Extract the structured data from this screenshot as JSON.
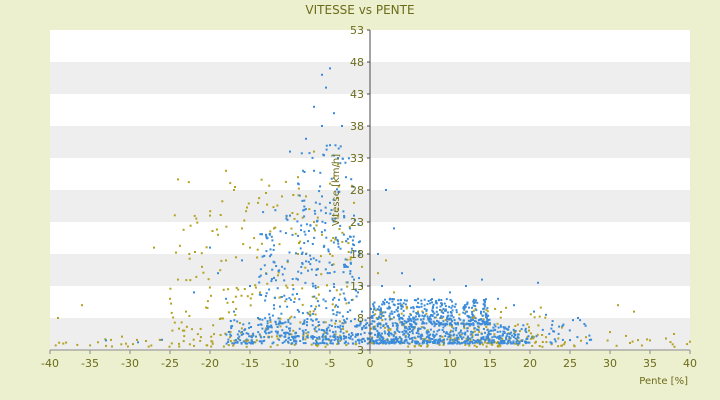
{
  "chart_data": {
    "type": "scatter",
    "title": "VITESSE vs PENTE",
    "xlabel": "Pente [%]",
    "ylabel": "Vitesse [km/h]",
    "xlim": [
      -40,
      40
    ],
    "ylim": [
      3,
      53
    ],
    "xticks": [
      -40,
      -35,
      -30,
      -25,
      -20,
      -15,
      -10,
      -5,
      0,
      5,
      10,
      15,
      20,
      25,
      30,
      35,
      40
    ],
    "yticks": [
      3,
      8,
      13,
      18,
      23,
      28,
      33,
      38,
      43,
      48,
      53
    ],
    "grid": "alternating horizontal bands",
    "legend": "none",
    "colors": {
      "background": "#edf0cf",
      "plot": "#ffffff",
      "band": "#eeeeee",
      "text": "#6b6b1a",
      "series_a": "#3a8bd9",
      "series_b": "#b3a323",
      "axis": "#4a4a4a"
    },
    "series": [
      {
        "color": "#3a8bd9",
        "points": [
          [
            -33,
            4.5
          ],
          [
            -29,
            4.2
          ],
          [
            -26,
            4.6
          ],
          [
            -22,
            12
          ],
          [
            -20,
            19
          ],
          [
            -19,
            15
          ],
          [
            -18,
            11
          ],
          [
            -17,
            9
          ],
          [
            -16,
            17
          ],
          [
            -15,
            13
          ],
          [
            -14,
            8
          ],
          [
            -13,
            21
          ],
          [
            -12,
            10
          ],
          [
            -11,
            16
          ],
          [
            -10,
            34
          ],
          [
            -10,
            24
          ],
          [
            -9,
            29
          ],
          [
            -9,
            14
          ],
          [
            -8,
            36
          ],
          [
            -8,
            18
          ],
          [
            -7,
            41
          ],
          [
            -7,
            31
          ],
          [
            -7,
            22
          ],
          [
            -6,
            46
          ],
          [
            -6,
            38
          ],
          [
            -6,
            27
          ],
          [
            -5.5,
            44
          ],
          [
            -5,
            47
          ],
          [
            -5,
            35
          ],
          [
            -5,
            26
          ],
          [
            -4.5,
            40
          ],
          [
            -4,
            33
          ],
          [
            -4,
            20
          ],
          [
            -3.5,
            38
          ],
          [
            -3,
            30
          ],
          [
            -3,
            16
          ],
          [
            -2.5,
            22
          ],
          [
            -2,
            24
          ],
          [
            -2,
            14
          ],
          [
            -1.5,
            12
          ],
          [
            -1,
            13
          ],
          [
            -1,
            9
          ],
          [
            -0.5,
            7
          ],
          [
            1,
            18
          ],
          [
            1.5,
            13
          ],
          [
            2,
            28
          ],
          [
            3,
            22
          ],
          [
            2.5,
            11
          ],
          [
            4,
            15
          ],
          [
            5,
            13
          ],
          [
            6,
            11
          ],
          [
            8,
            14
          ],
          [
            9,
            10
          ],
          [
            10,
            12
          ],
          [
            12,
            13
          ],
          [
            14,
            14
          ],
          [
            16,
            11
          ],
          [
            18,
            10
          ],
          [
            20.5,
            9
          ],
          [
            22,
            8.5
          ],
          [
            26,
            8
          ],
          [
            21,
            13.5
          ]
        ],
        "bands": [
          {
            "x": [
              -18,
              0
            ],
            "y": [
              4,
              8
            ],
            "n": 250
          },
          {
            "x": [
              -14,
              -1
            ],
            "y": [
              5,
              25
            ],
            "n": 260
          },
          {
            "x": [
              -9,
              -2
            ],
            "y": [
              15,
              35
            ],
            "n": 80
          },
          {
            "x": [
              0,
              15
            ],
            "y": [
              7,
              11
            ],
            "n": 380
          },
          {
            "x": [
              0,
              18
            ],
            "y": [
              4,
              7
            ],
            "n": 280
          },
          {
            "x": [
              0,
              20
            ],
            "y": [
              4,
              6
            ],
            "n": 200
          },
          {
            "x": [
              15,
              28
            ],
            "y": [
              4,
              8
            ],
            "n": 50
          }
        ]
      },
      {
        "color": "#b3a323",
        "points": [
          [
            -39,
            8
          ],
          [
            -36,
            10
          ],
          [
            -34,
            4.2
          ],
          [
            -31,
            5.1
          ],
          [
            -28,
            4.4
          ],
          [
            -27,
            19
          ],
          [
            -25,
            11
          ],
          [
            -24,
            14
          ],
          [
            -23,
            9
          ],
          [
            -21,
            16
          ],
          [
            -20,
            24
          ],
          [
            -19,
            21
          ],
          [
            -18,
            31
          ],
          [
            -18,
            17
          ],
          [
            -17,
            28
          ],
          [
            -16,
            22
          ],
          [
            -15,
            19
          ],
          [
            -14,
            26
          ],
          [
            -13,
            15
          ],
          [
            -12,
            22
          ],
          [
            -11,
            27
          ],
          [
            -10,
            24
          ],
          [
            -9,
            30
          ],
          [
            -9,
            18
          ],
          [
            -8,
            27
          ],
          [
            -7,
            23
          ],
          [
            -7,
            34
          ],
          [
            -6,
            21
          ],
          [
            -5,
            29
          ],
          [
            -5,
            18
          ],
          [
            -4,
            25
          ],
          [
            -4,
            32
          ],
          [
            -3,
            20
          ],
          [
            -2,
            14
          ],
          [
            -2,
            26
          ],
          [
            -1,
            16
          ],
          [
            1,
            15
          ],
          [
            2,
            17
          ],
          [
            3,
            12
          ],
          [
            4,
            10
          ],
          [
            6,
            9
          ],
          [
            9,
            8
          ],
          [
            12,
            9
          ],
          [
            15,
            7
          ],
          [
            18,
            6
          ],
          [
            22,
            5
          ],
          [
            24,
            6.5
          ],
          [
            27,
            5
          ],
          [
            30,
            5.8
          ],
          [
            31,
            10
          ],
          [
            32,
            5.2
          ],
          [
            33,
            9
          ],
          [
            35,
            4.5
          ],
          [
            37,
            4.8
          ],
          [
            38,
            5.5
          ],
          [
            40,
            4.3
          ]
        ],
        "bands": [
          {
            "x": [
              -40,
              40
            ],
            "y": [
              3.5,
              4.8
            ],
            "n": 140
          },
          {
            "x": [
              -25,
              -2
            ],
            "y": [
              5,
              30
            ],
            "n": 220
          },
          {
            "x": [
              0,
              22
            ],
            "y": [
              4,
              10
            ],
            "n": 160
          }
        ]
      }
    ]
  }
}
